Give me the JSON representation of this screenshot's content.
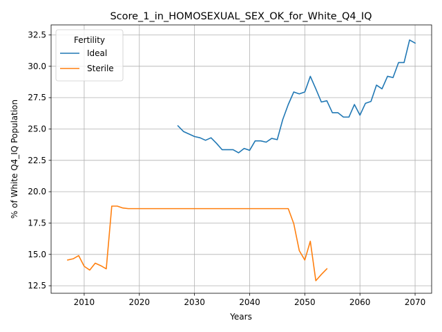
{
  "chart_data": {
    "type": "line",
    "title": "Score_1_in_HOMOSEXUAL_SEX_OK_for_White_Q4_IQ",
    "xlabel": "Years",
    "ylabel": "% of White Q4_IQ Population",
    "xlim": [
      2004,
      2073
    ],
    "ylim": [
      11.9,
      33.3
    ],
    "xticks": [
      2010,
      2020,
      2030,
      2040,
      2050,
      2060,
      2070
    ],
    "yticks": [
      12.5,
      15.0,
      17.5,
      20.0,
      22.5,
      25.0,
      27.5,
      30.0,
      32.5
    ],
    "ytick_labels": [
      "12.5",
      "15.0",
      "17.5",
      "20.0",
      "22.5",
      "25.0",
      "27.5",
      "30.0",
      "32.5"
    ],
    "grid": true,
    "legend": {
      "title": "Fertility",
      "placement": "top-left"
    },
    "series": [
      {
        "name": "Ideal",
        "color": "#1f77b4",
        "x": [
          2027,
          2028,
          2029,
          2030,
          2031,
          2032,
          2033,
          2034,
          2035,
          2036,
          2037,
          2038,
          2039,
          2040,
          2041,
          2042,
          2043,
          2044,
          2045,
          2046,
          2047,
          2048,
          2049,
          2050,
          2051,
          2052,
          2053,
          2054,
          2055,
          2056,
          2057,
          2058,
          2059,
          2060,
          2061,
          2062,
          2063,
          2064,
          2065,
          2066,
          2067,
          2068,
          2069,
          2070
        ],
        "y": [
          25.25,
          24.8,
          24.6,
          24.4,
          24.3,
          24.1,
          24.3,
          23.85,
          23.35,
          23.35,
          23.35,
          23.1,
          23.45,
          23.3,
          24.05,
          24.05,
          23.95,
          24.25,
          24.15,
          25.75,
          26.95,
          27.95,
          27.8,
          27.95,
          29.2,
          28.2,
          27.15,
          27.25,
          26.3,
          26.3,
          25.95,
          25.95,
          26.95,
          26.1,
          27.05,
          27.2,
          28.5,
          28.2,
          29.2,
          29.1,
          30.3,
          30.3,
          32.1,
          31.85
        ]
      },
      {
        "name": "Sterile",
        "color": "#ff7f0e",
        "x": [
          2007,
          2008,
          2009,
          2010,
          2011,
          2012,
          2013,
          2014,
          2015,
          2016,
          2017,
          2018,
          2019,
          2020,
          2021,
          2022,
          2023,
          2024,
          2025,
          2026,
          2027,
          2028,
          2029,
          2030,
          2031,
          2032,
          2033,
          2034,
          2035,
          2036,
          2037,
          2038,
          2039,
          2040,
          2041,
          2042,
          2043,
          2044,
          2045,
          2046,
          2047,
          2048,
          2049,
          2050,
          2051,
          2052,
          2053,
          2054
        ],
        "y": [
          14.55,
          14.65,
          14.9,
          14.05,
          13.75,
          14.3,
          14.1,
          13.85,
          18.85,
          18.85,
          18.7,
          18.65,
          18.65,
          18.65,
          18.65,
          18.65,
          18.65,
          18.65,
          18.65,
          18.65,
          18.65,
          18.65,
          18.65,
          18.65,
          18.65,
          18.65,
          18.65,
          18.65,
          18.65,
          18.65,
          18.65,
          18.65,
          18.65,
          18.65,
          18.65,
          18.65,
          18.65,
          18.65,
          18.65,
          18.65,
          18.65,
          17.45,
          15.3,
          14.55,
          16.05,
          12.9,
          13.4,
          13.85
        ]
      }
    ]
  }
}
